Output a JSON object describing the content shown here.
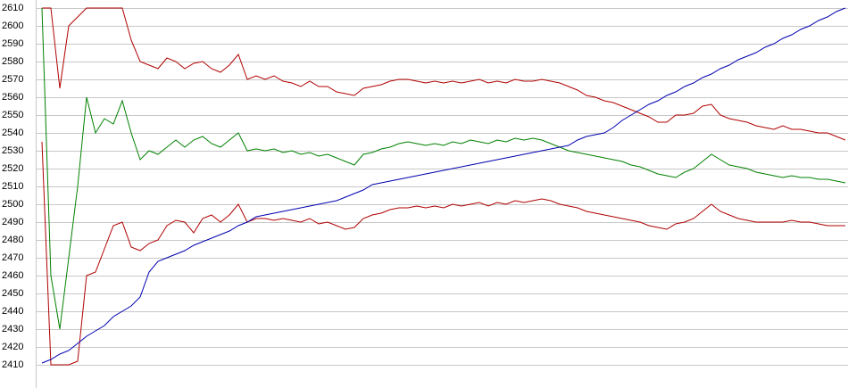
{
  "chart_data": {
    "type": "line",
    "ylim": [
      2410,
      2610
    ],
    "yticks": [
      2410,
      2420,
      2430,
      2440,
      2450,
      2460,
      2470,
      2480,
      2490,
      2500,
      2510,
      2520,
      2530,
      2540,
      2550,
      2560,
      2570,
      2580,
      2590,
      2600,
      2610
    ],
    "grid": true,
    "series": [
      {
        "color": "#b00000",
        "values": [
          2610,
          2610,
          2565,
          2600,
          2605,
          2610,
          2610,
          2610,
          2610,
          2610,
          2592,
          2580,
          2578,
          2576,
          2582,
          2580,
          2576,
          2579,
          2580,
          2576,
          2574,
          2578,
          2584,
          2570,
          2572,
          2570,
          2572,
          2569,
          2568,
          2566,
          2569,
          2566,
          2566,
          2563,
          2562,
          2561,
          2565,
          2566,
          2567,
          2569,
          2570,
          2570,
          2569,
          2568,
          2569,
          2568,
          2569,
          2568,
          2569,
          2570,
          2568,
          2569,
          2568,
          2570,
          2569,
          2569,
          2570,
          2569,
          2568,
          2566,
          2564,
          2561,
          2560,
          2558,
          2557,
          2555,
          2553,
          2551,
          2549,
          2546,
          2546,
          2550,
          2550,
          2551,
          2555,
          2556,
          2550,
          2548,
          2547,
          2546,
          2544,
          2543,
          2542,
          2544,
          2542,
          2542,
          2541,
          2540,
          2540,
          2538,
          2536
        ]
      },
      {
        "color": "#008000",
        "values": [
          2610,
          2460,
          2430,
          2470,
          2510,
          2560,
          2540,
          2548,
          2545,
          2558,
          2540,
          2525,
          2530,
          2528,
          2532,
          2536,
          2532,
          2536,
          2538,
          2534,
          2532,
          2536,
          2540,
          2530,
          2531,
          2530,
          2531,
          2529,
          2530,
          2528,
          2529,
          2527,
          2528,
          2526,
          2524,
          2522,
          2528,
          2529,
          2531,
          2532,
          2534,
          2535,
          2534,
          2533,
          2534,
          2533,
          2535,
          2534,
          2536,
          2535,
          2534,
          2536,
          2535,
          2537,
          2536,
          2537,
          2536,
          2534,
          2532,
          2530,
          2529,
          2528,
          2527,
          2526,
          2525,
          2524,
          2522,
          2521,
          2519,
          2517,
          2516,
          2515,
          2518,
          2520,
          2524,
          2528,
          2525,
          2522,
          2521,
          2520,
          2518,
          2517,
          2516,
          2515,
          2516,
          2515,
          2515,
          2514,
          2514,
          2513,
          2512
        ]
      },
      {
        "color": "#b00000",
        "values": [
          2535,
          2410,
          2410,
          2410,
          2412,
          2460,
          2462,
          2475,
          2488,
          2490,
          2476,
          2474,
          2478,
          2480,
          2488,
          2491,
          2490,
          2484,
          2492,
          2494,
          2490,
          2494,
          2500,
          2490,
          2492,
          2492,
          2491,
          2492,
          2491,
          2490,
          2492,
          2489,
          2490,
          2488,
          2486,
          2487,
          2492,
          2494,
          2495,
          2497,
          2498,
          2498,
          2499,
          2498,
          2499,
          2498,
          2500,
          2499,
          2500,
          2501,
          2499,
          2501,
          2500,
          2502,
          2501,
          2502,
          2503,
          2502,
          2500,
          2499,
          2498,
          2496,
          2495,
          2494,
          2493,
          2492,
          2491,
          2490,
          2488,
          2487,
          2486,
          2489,
          2490,
          2492,
          2496,
          2500,
          2496,
          2494,
          2492,
          2491,
          2490,
          2490,
          2490,
          2490,
          2491,
          2490,
          2490,
          2489,
          2488,
          2488,
          2488
        ]
      },
      {
        "color": "#0000b0",
        "values": [
          2411,
          2413,
          2416,
          2418,
          2422,
          2426,
          2429,
          2432,
          2437,
          2440,
          2443,
          2448,
          2462,
          2468,
          2470,
          2472,
          2474,
          2477,
          2479,
          2481,
          2483,
          2485,
          2488,
          2490,
          2493,
          2494,
          2495,
          2496,
          2497,
          2498,
          2499,
          2500,
          2501,
          2502,
          2504,
          2506,
          2508,
          2511,
          2512,
          2513,
          2514,
          2515,
          2516,
          2517,
          2518,
          2519,
          2520,
          2521,
          2522,
          2523,
          2524,
          2525,
          2526,
          2527,
          2528,
          2529,
          2530,
          2531,
          2532,
          2533,
          2536,
          2538,
          2539,
          2540,
          2543,
          2547,
          2550,
          2553,
          2556,
          2558,
          2561,
          2563,
          2566,
          2568,
          2571,
          2573,
          2576,
          2578,
          2581,
          2583,
          2585,
          2588,
          2590,
          2593,
          2595,
          2598,
          2600,
          2603,
          2605,
          2608,
          2610
        ]
      }
    ]
  }
}
